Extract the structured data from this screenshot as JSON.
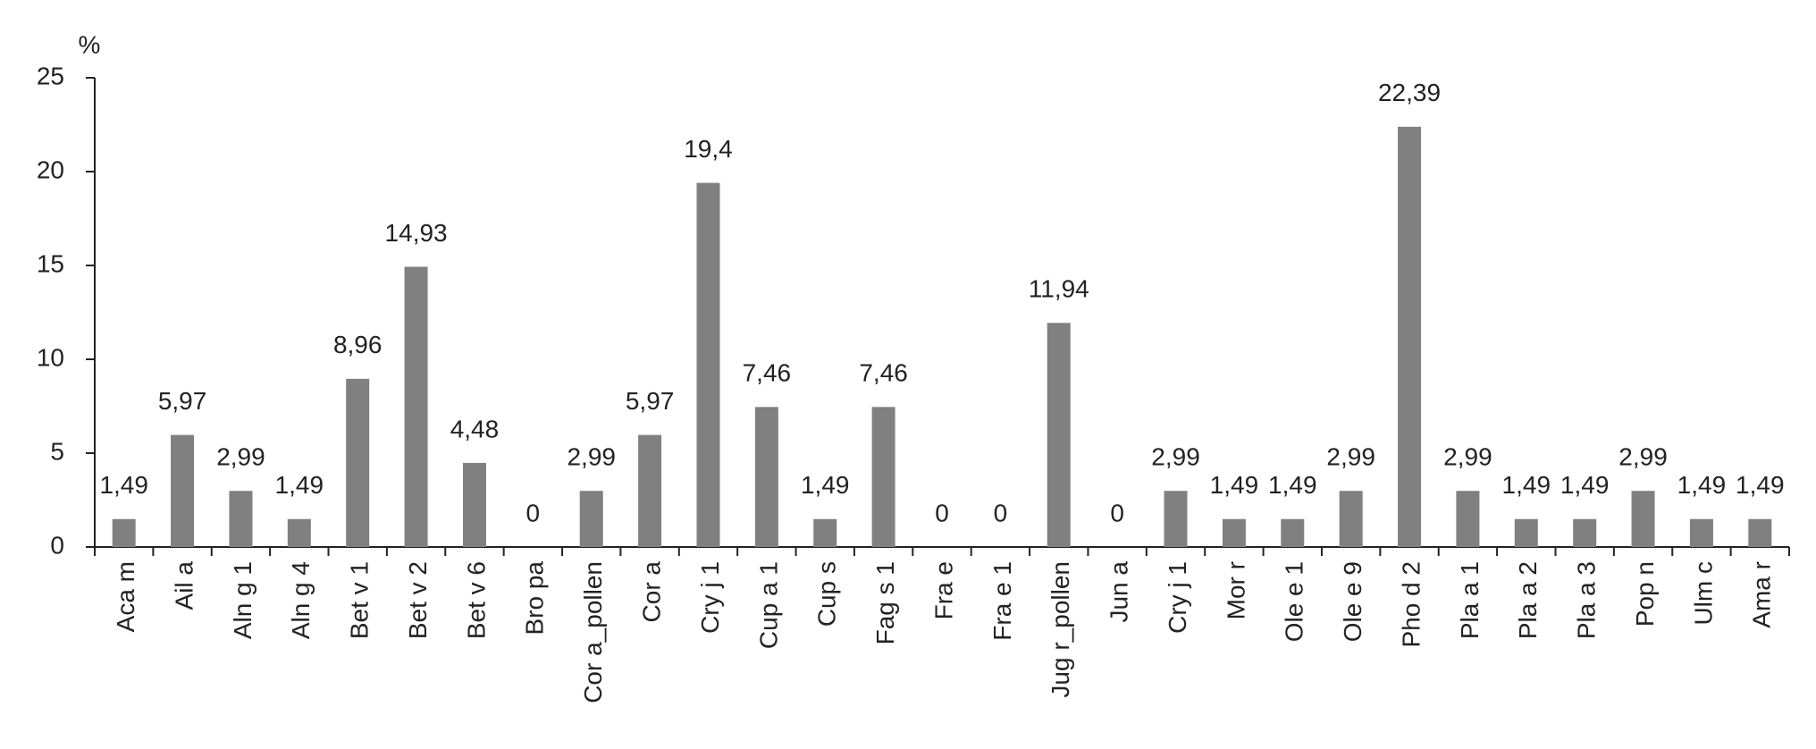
{
  "chart_data": {
    "type": "bar",
    "y_label": "%",
    "categories": [
      "Aca m",
      "Ail a",
      "Aln g 1",
      "Aln g 4",
      "Bet v 1",
      "Bet v 2",
      "Bet v 6",
      "Bro pa",
      "Cor a_pollen",
      "Cor a",
      "Cry j 1",
      "Cup a 1",
      "Cup s",
      "Fag s 1",
      "Fra e",
      "Fra e 1",
      "Jug r_pollen",
      "Jun a",
      "Cry j 1",
      "Mor r",
      "Ole e 1",
      "Ole e 9",
      "Pho d 2",
      "Pla a 1",
      "Pla a 2",
      "Pla a 3",
      "Pop n",
      "Ulm c",
      "Ama r"
    ],
    "values": [
      1.49,
      5.97,
      2.99,
      1.49,
      8.96,
      14.93,
      4.48,
      0,
      2.99,
      5.97,
      19.4,
      7.46,
      1.49,
      7.46,
      0,
      0,
      11.94,
      0,
      2.99,
      1.49,
      1.49,
      2.99,
      22.39,
      2.99,
      1.49,
      1.49,
      2.99,
      1.49,
      1.49
    ],
    "value_labels": [
      "1,49",
      "5,97",
      "2,99",
      "1,49",
      "8,96",
      "14,93",
      "4,48",
      "0",
      "2,99",
      "5,97",
      "19,4",
      "7,46",
      "1,49",
      "7,46",
      "0",
      "0",
      "11,94",
      "0",
      "2,99",
      "1,49",
      "1,49",
      "2,99",
      "22,39",
      "2,99",
      "1,49",
      "1,49",
      "2,99",
      "1,49",
      "1,49"
    ],
    "color": "#808080",
    "ylim": [
      0,
      25
    ],
    "yticks": [
      0,
      5,
      10,
      15,
      20,
      25
    ],
    "grid": false
  }
}
